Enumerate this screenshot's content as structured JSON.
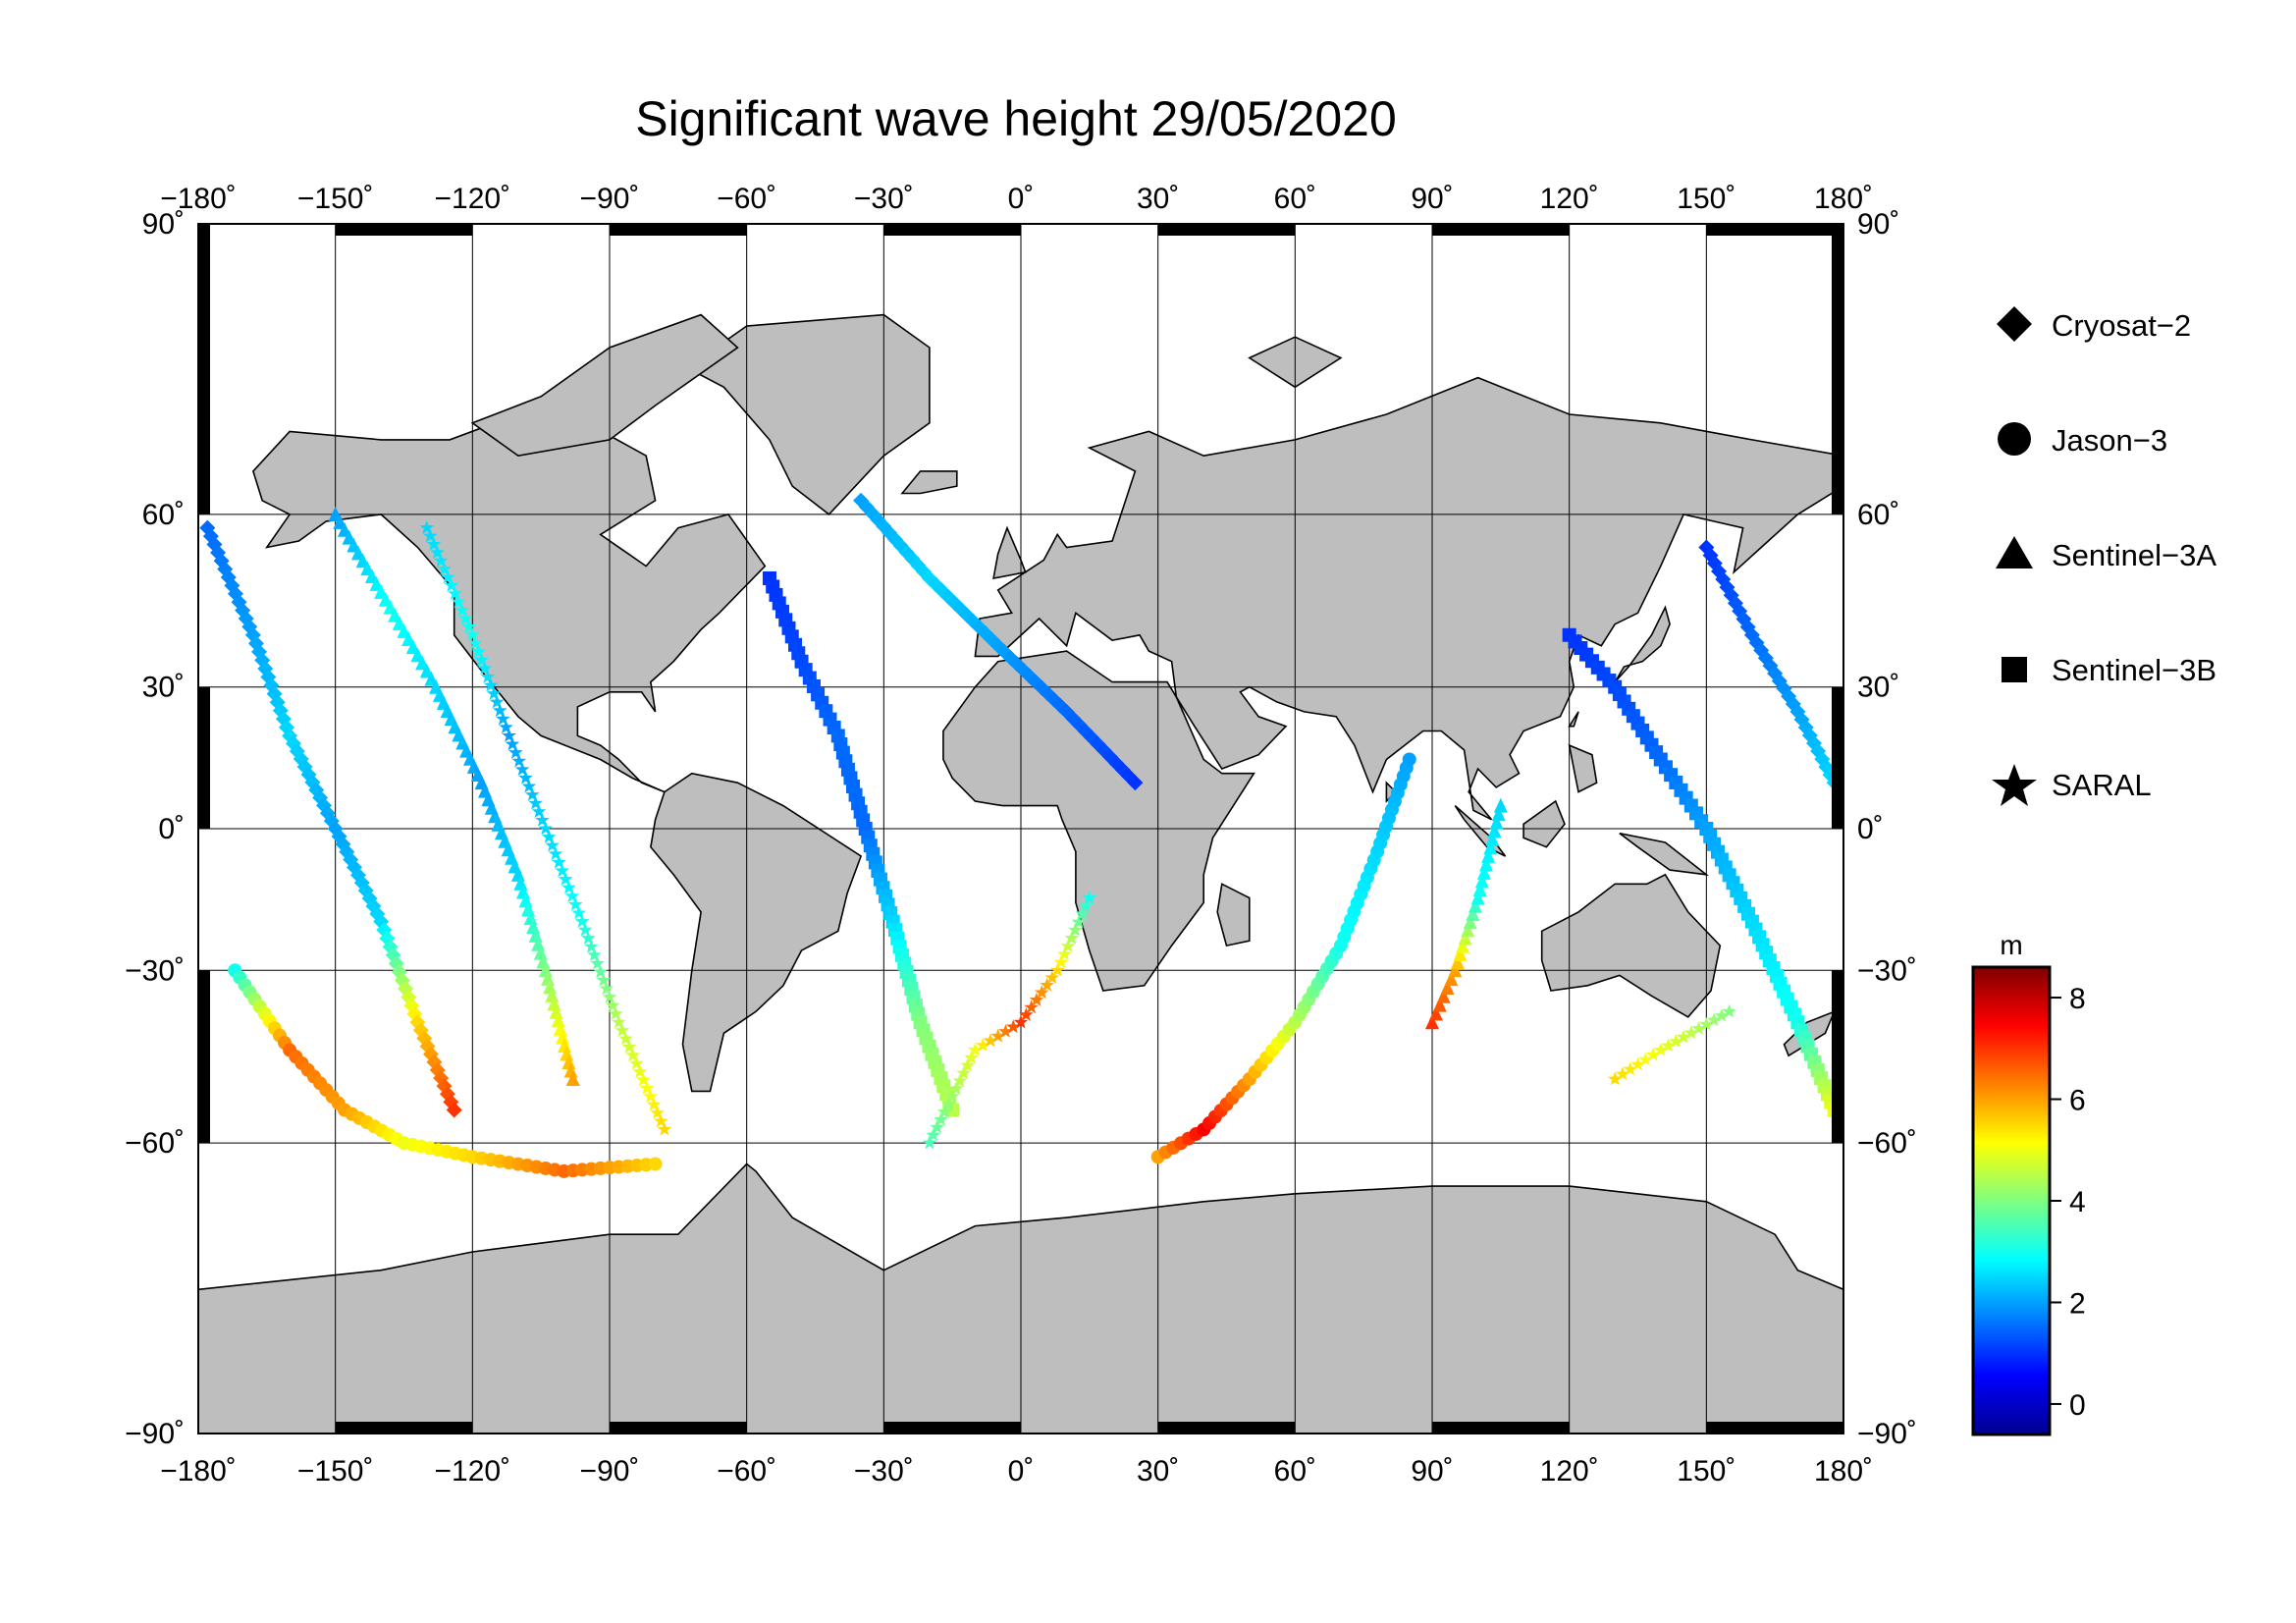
{
  "title": "Significant wave height 29/05/2020",
  "map": {
    "lon_ticks": [
      -180,
      -150,
      -120,
      -90,
      -60,
      -30,
      0,
      30,
      60,
      90,
      120,
      150,
      180
    ],
    "lat_ticks": [
      90,
      60,
      30,
      0,
      -30,
      -60,
      -90
    ],
    "lon_tick_labels": [
      "−180˚",
      "−150˚",
      "−120˚",
      "−90˚",
      "−60˚",
      "−30˚",
      "0˚",
      "30˚",
      "60˚",
      "90˚",
      "120˚",
      "150˚",
      "180˚"
    ],
    "lat_tick_labels": [
      "90˚",
      "60˚",
      "30˚",
      "0˚",
      "−30˚",
      "−60˚",
      "−90˚"
    ],
    "lat_tick_labels_left": [
      "90˚",
      "60˚",
      "30˚",
      "0˚",
      "−30˚",
      "−60˚",
      "−90˚"
    ],
    "lon_range": [
      -180,
      180
    ],
    "lat_range": [
      -90,
      90
    ],
    "projection": "miller-cylindrical",
    "grid": true,
    "land_color": "#bebebe",
    "ocean_color": "#ffffff"
  },
  "legend": {
    "items": [
      {
        "label": "Cryosat−2",
        "symbol": "diamond"
      },
      {
        "label": "Jason−3",
        "symbol": "circle"
      },
      {
        "label": "Sentinel−3A",
        "symbol": "triangle"
      },
      {
        "label": "Sentinel−3B",
        "symbol": "square"
      },
      {
        "label": "SARAL",
        "symbol": "star"
      }
    ]
  },
  "colorbar": {
    "unit": "m",
    "ticks": [
      0,
      2,
      4,
      6,
      8
    ],
    "tick_labels": [
      "0",
      "2",
      "4",
      "6",
      "8"
    ],
    "range": [
      -0.6,
      8.6
    ],
    "colormap": [
      "#00008f",
      "#0000ff",
      "#0080ff",
      "#00ffff",
      "#80ff80",
      "#ffff00",
      "#ff8000",
      "#ff0000",
      "#800000"
    ]
  },
  "chart_data": {
    "type": "scatter",
    "title": "Significant wave height 29/05/2020",
    "color_variable": "significant wave height (m)",
    "tracks": [
      {
        "sat": "diamond",
        "points": [
          [
            -178,
            58,
            1.5
          ],
          [
            -168,
            40,
            2
          ],
          [
            -160,
            20,
            2.5
          ],
          [
            -150,
            0,
            2
          ],
          [
            -140,
            -20,
            2.5
          ],
          [
            -132,
            -40,
            5.5
          ],
          [
            -124,
            -55,
            7
          ]
        ]
      },
      {
        "sat": "circle",
        "points": [
          [
            -172,
            -30,
            3
          ],
          [
            -160,
            -45,
            6.5
          ],
          [
            -148,
            -55,
            6
          ],
          [
            -135,
            -60,
            5
          ],
          [
            -120,
            -62,
            5.5
          ],
          [
            -100,
            -64,
            6.5
          ],
          [
            -80,
            -63,
            5.5
          ]
        ]
      },
      {
        "sat": "triangle",
        "points": [
          [
            -150,
            60,
            2
          ],
          [
            -138,
            45,
            3
          ],
          [
            -128,
            30,
            2.5
          ],
          [
            -118,
            10,
            2
          ],
          [
            -110,
            -10,
            2.5
          ],
          [
            -104,
            -30,
            4
          ],
          [
            -98,
            -50,
            6
          ]
        ]
      },
      {
        "sat": "star",
        "points": [
          [
            -130,
            58,
            2.5
          ],
          [
            -120,
            40,
            3
          ],
          [
            -112,
            20,
            2
          ],
          [
            -104,
            0,
            2.5
          ],
          [
            -96,
            -20,
            3
          ],
          [
            -88,
            -40,
            4.5
          ],
          [
            -78,
            -58,
            5.5
          ]
        ]
      },
      {
        "sat": "square",
        "points": [
          [
            -55,
            50,
            1
          ],
          [
            -48,
            35,
            1.2
          ],
          [
            -40,
            20,
            1.5
          ],
          [
            -34,
            0,
            1.5
          ],
          [
            -28,
            -20,
            2.5
          ],
          [
            -22,
            -40,
            4
          ],
          [
            -15,
            -55,
            4.5
          ]
        ]
      },
      {
        "sat": "diamond",
        "points": [
          [
            -35,
            62,
            2
          ],
          [
            -20,
            50,
            2.5
          ],
          [
            -5,
            38,
            2
          ],
          [
            10,
            25,
            1.5
          ],
          [
            25,
            10,
            1
          ]
        ]
      },
      {
        "sat": "star",
        "points": [
          [
            -20,
            -60,
            3.5
          ],
          [
            -10,
            -45,
            5
          ],
          [
            0,
            -40,
            7
          ],
          [
            8,
            -30,
            5.5
          ],
          [
            15,
            -15,
            3
          ]
        ]
      },
      {
        "sat": "circle",
        "points": [
          [
            30,
            -62,
            6
          ],
          [
            40,
            -58,
            7.5
          ],
          [
            50,
            -50,
            6
          ],
          [
            60,
            -40,
            4.5
          ],
          [
            70,
            -25,
            3
          ],
          [
            78,
            -5,
            2.5
          ],
          [
            85,
            15,
            2
          ]
        ]
      },
      {
        "sat": "triangle",
        "points": [
          [
            90,
            -40,
            7
          ],
          [
            95,
            -30,
            6
          ],
          [
            100,
            -15,
            3
          ],
          [
            105,
            5,
            2.5
          ]
        ]
      },
      {
        "sat": "square",
        "points": [
          [
            120,
            40,
            1
          ],
          [
            130,
            30,
            1.2
          ],
          [
            140,
            15,
            1.5
          ],
          [
            150,
            0,
            2
          ],
          [
            160,
            -20,
            2.5
          ],
          [
            170,
            -40,
            3
          ],
          [
            178,
            -55,
            5
          ]
        ]
      },
      {
        "sat": "star",
        "points": [
          [
            130,
            -50,
            5.5
          ],
          [
            140,
            -45,
            5
          ],
          [
            155,
            -38,
            4
          ]
        ]
      },
      {
        "sat": "diamond",
        "points": [
          [
            150,
            55,
            1
          ],
          [
            160,
            40,
            1.5
          ],
          [
            170,
            25,
            2
          ],
          [
            178,
            10,
            2.5
          ]
        ]
      }
    ]
  }
}
